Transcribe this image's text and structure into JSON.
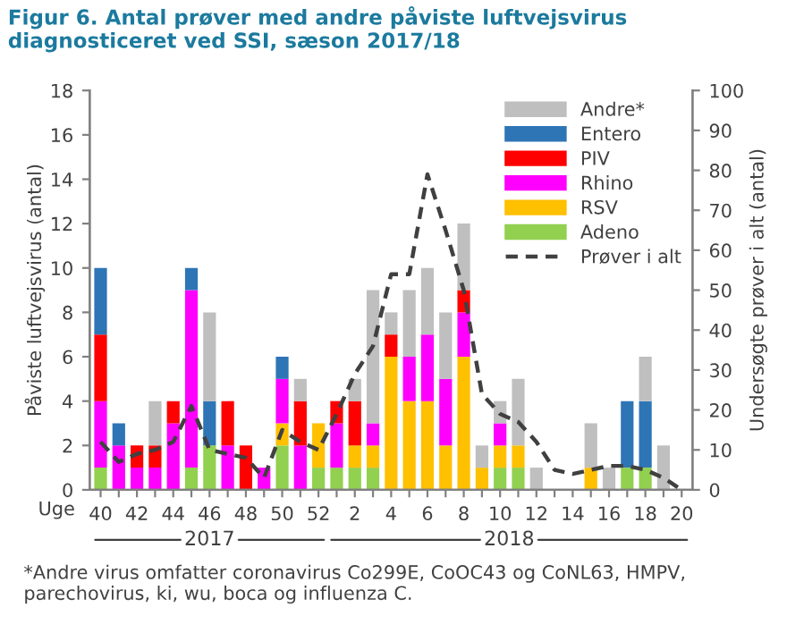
{
  "chart_data": {
    "type": "bar",
    "stacked": true,
    "title": "Figur 6. Antal prøver med andre påviste luftvejsvirus diagnosticeret ved SSI, sæson 2017/18",
    "xlabel": "Uge",
    "ylabel": "Påviste luftvejsvirus (antal)",
    "y2label": "Undersøgte prøver i alt (antal)",
    "categories": [
      "40",
      null,
      "42",
      null,
      "44",
      null,
      "46",
      null,
      "48",
      null,
      "50",
      null,
      "52",
      null,
      "2",
      null,
      "4",
      null,
      "6",
      null,
      "8",
      null,
      "10",
      null,
      "12",
      null,
      "14",
      null,
      "16",
      null,
      "18",
      null,
      "20"
    ],
    "series": [
      {
        "name": "Adeno",
        "color": "#92d050",
        "values": [
          1,
          0,
          0,
          0,
          0,
          1,
          2,
          0,
          0,
          0,
          2,
          0,
          1,
          1,
          1,
          1,
          0,
          0,
          0,
          0,
          0,
          0,
          1,
          1,
          0,
          0,
          0,
          0,
          0,
          1,
          1,
          0,
          0
        ]
      },
      {
        "name": "RSV",
        "color": "#ffc000",
        "values": [
          0,
          0,
          0,
          0,
          0,
          0,
          0,
          0,
          0,
          0,
          1,
          0,
          2,
          0,
          1,
          1,
          6,
          4,
          4,
          2,
          6,
          1,
          1,
          1,
          0,
          0,
          0,
          1,
          0,
          0,
          0,
          0,
          0
        ]
      },
      {
        "name": "Rhino",
        "color": "#ff00ff",
        "values": [
          3,
          2,
          1,
          1,
          3,
          8,
          0,
          2,
          0,
          1,
          2,
          2,
          0,
          2,
          0,
          1,
          0,
          2,
          3,
          3,
          2,
          0,
          1,
          0,
          0,
          0,
          0,
          0,
          0,
          0,
          0,
          0,
          0
        ]
      },
      {
        "name": "PIV",
        "color": "#ff0000",
        "values": [
          3,
          0,
          1,
          1,
          1,
          0,
          0,
          2,
          2,
          0,
          0,
          2,
          0,
          1,
          2,
          0,
          1,
          0,
          0,
          0,
          1,
          0,
          0,
          0,
          0,
          0,
          0,
          0,
          0,
          0,
          0,
          0,
          0
        ]
      },
      {
        "name": "Entero",
        "color": "#2e75b6",
        "values": [
          3,
          1,
          0,
          0,
          0,
          1,
          2,
          0,
          0,
          0,
          1,
          0,
          0,
          0,
          0,
          0,
          0,
          0,
          0,
          0,
          0,
          0,
          0,
          0,
          0,
          0,
          0,
          0,
          0,
          3,
          3,
          0,
          0
        ]
      },
      {
        "name": "Andre*",
        "color": "#bfbfbf",
        "values": [
          0,
          0,
          0,
          2,
          0,
          0,
          4,
          0,
          0,
          0,
          0,
          1,
          0,
          0,
          1,
          6,
          1,
          3,
          3,
          3,
          3,
          1,
          1,
          3,
          1,
          0,
          0,
          2,
          1,
          0,
          2,
          2,
          0
        ]
      },
      {
        "name": "Prøver i alt",
        "type": "line",
        "axis": "y2",
        "color": "#404040",
        "line_style": "dashed",
        "values": [
          12,
          7,
          9,
          10,
          12,
          21,
          10,
          9,
          8,
          3,
          15,
          12,
          10,
          19,
          29,
          36,
          54,
          54,
          79,
          65,
          50,
          24,
          19,
          17,
          12,
          5,
          4,
          5,
          6,
          6,
          5,
          3,
          0
        ]
      }
    ],
    "ylim": [
      0,
      18
    ],
    "yticks": [
      0,
      2,
      4,
      6,
      8,
      10,
      12,
      14,
      16,
      18
    ],
    "y2lim": [
      0,
      100
    ],
    "y2ticks": [
      0,
      10,
      20,
      30,
      40,
      50,
      60,
      70,
      80,
      90,
      100
    ],
    "legend": "top right",
    "grid": false,
    "annotations": [
      "2017",
      "2018",
      "*Andre virus omfatter coronavirus Co299E, CoOC43 og CoNL63, HMPV, parechovirus, ki, wu, boca og influenza C."
    ]
  }
}
